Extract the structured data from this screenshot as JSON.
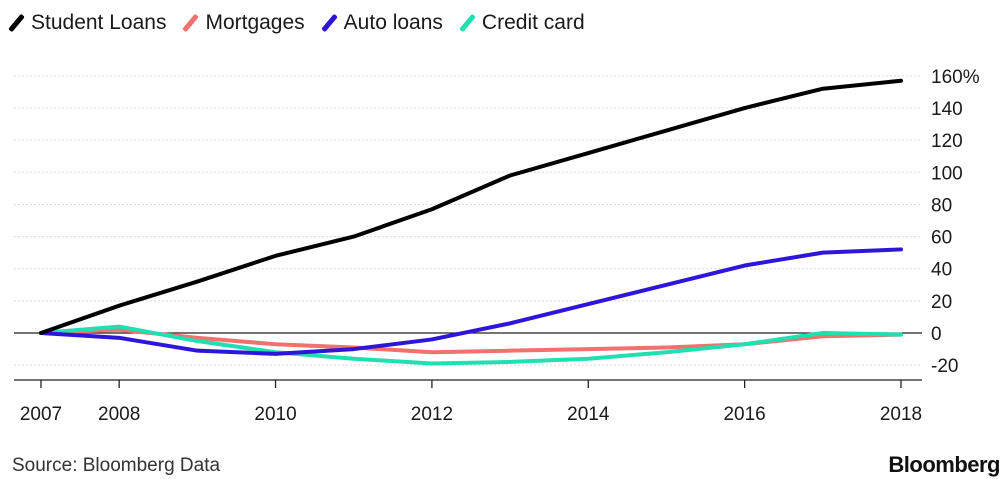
{
  "chart_data": {
    "type": "line",
    "x": [
      2007,
      2008,
      2009,
      2010,
      2011,
      2012,
      2013,
      2014,
      2015,
      2016,
      2017,
      2018
    ],
    "x_ticks": [
      "2007",
      "2008",
      "2010",
      "2012",
      "2014",
      "2016",
      "2018"
    ],
    "y_ticks": [
      "160%",
      "140",
      "120",
      "100",
      "80",
      "60",
      "40",
      "20",
      "0",
      "-20"
    ],
    "ylim": [
      -28,
      165
    ],
    "xlim": [
      2007,
      2018
    ],
    "grid": true,
    "legend_position": "top-left",
    "series": [
      {
        "name": "Student Loans",
        "color": "#000000",
        "values": [
          0,
          17,
          32,
          48,
          60,
          77,
          98,
          112,
          126,
          140,
          152,
          157
        ]
      },
      {
        "name": "Mortgages",
        "color": "#f0716e",
        "values": [
          0,
          2,
          -3,
          -7,
          -9,
          -12,
          -11,
          -10,
          -9,
          -7,
          -2,
          -1
        ]
      },
      {
        "name": "Auto loans",
        "color": "#2d16d9",
        "values": [
          0,
          -3,
          -11,
          -13,
          -10,
          -4,
          6,
          18,
          30,
          42,
          50,
          52
        ]
      },
      {
        "name": "Credit card",
        "color": "#1ee0b0",
        "values": [
          0,
          4,
          -5,
          -12,
          -16,
          -19,
          -18,
          -16,
          -12,
          -7,
          0,
          -1
        ]
      }
    ]
  },
  "footer": {
    "source": "Source: Bloomberg Data",
    "brand": "Bloomberg"
  }
}
